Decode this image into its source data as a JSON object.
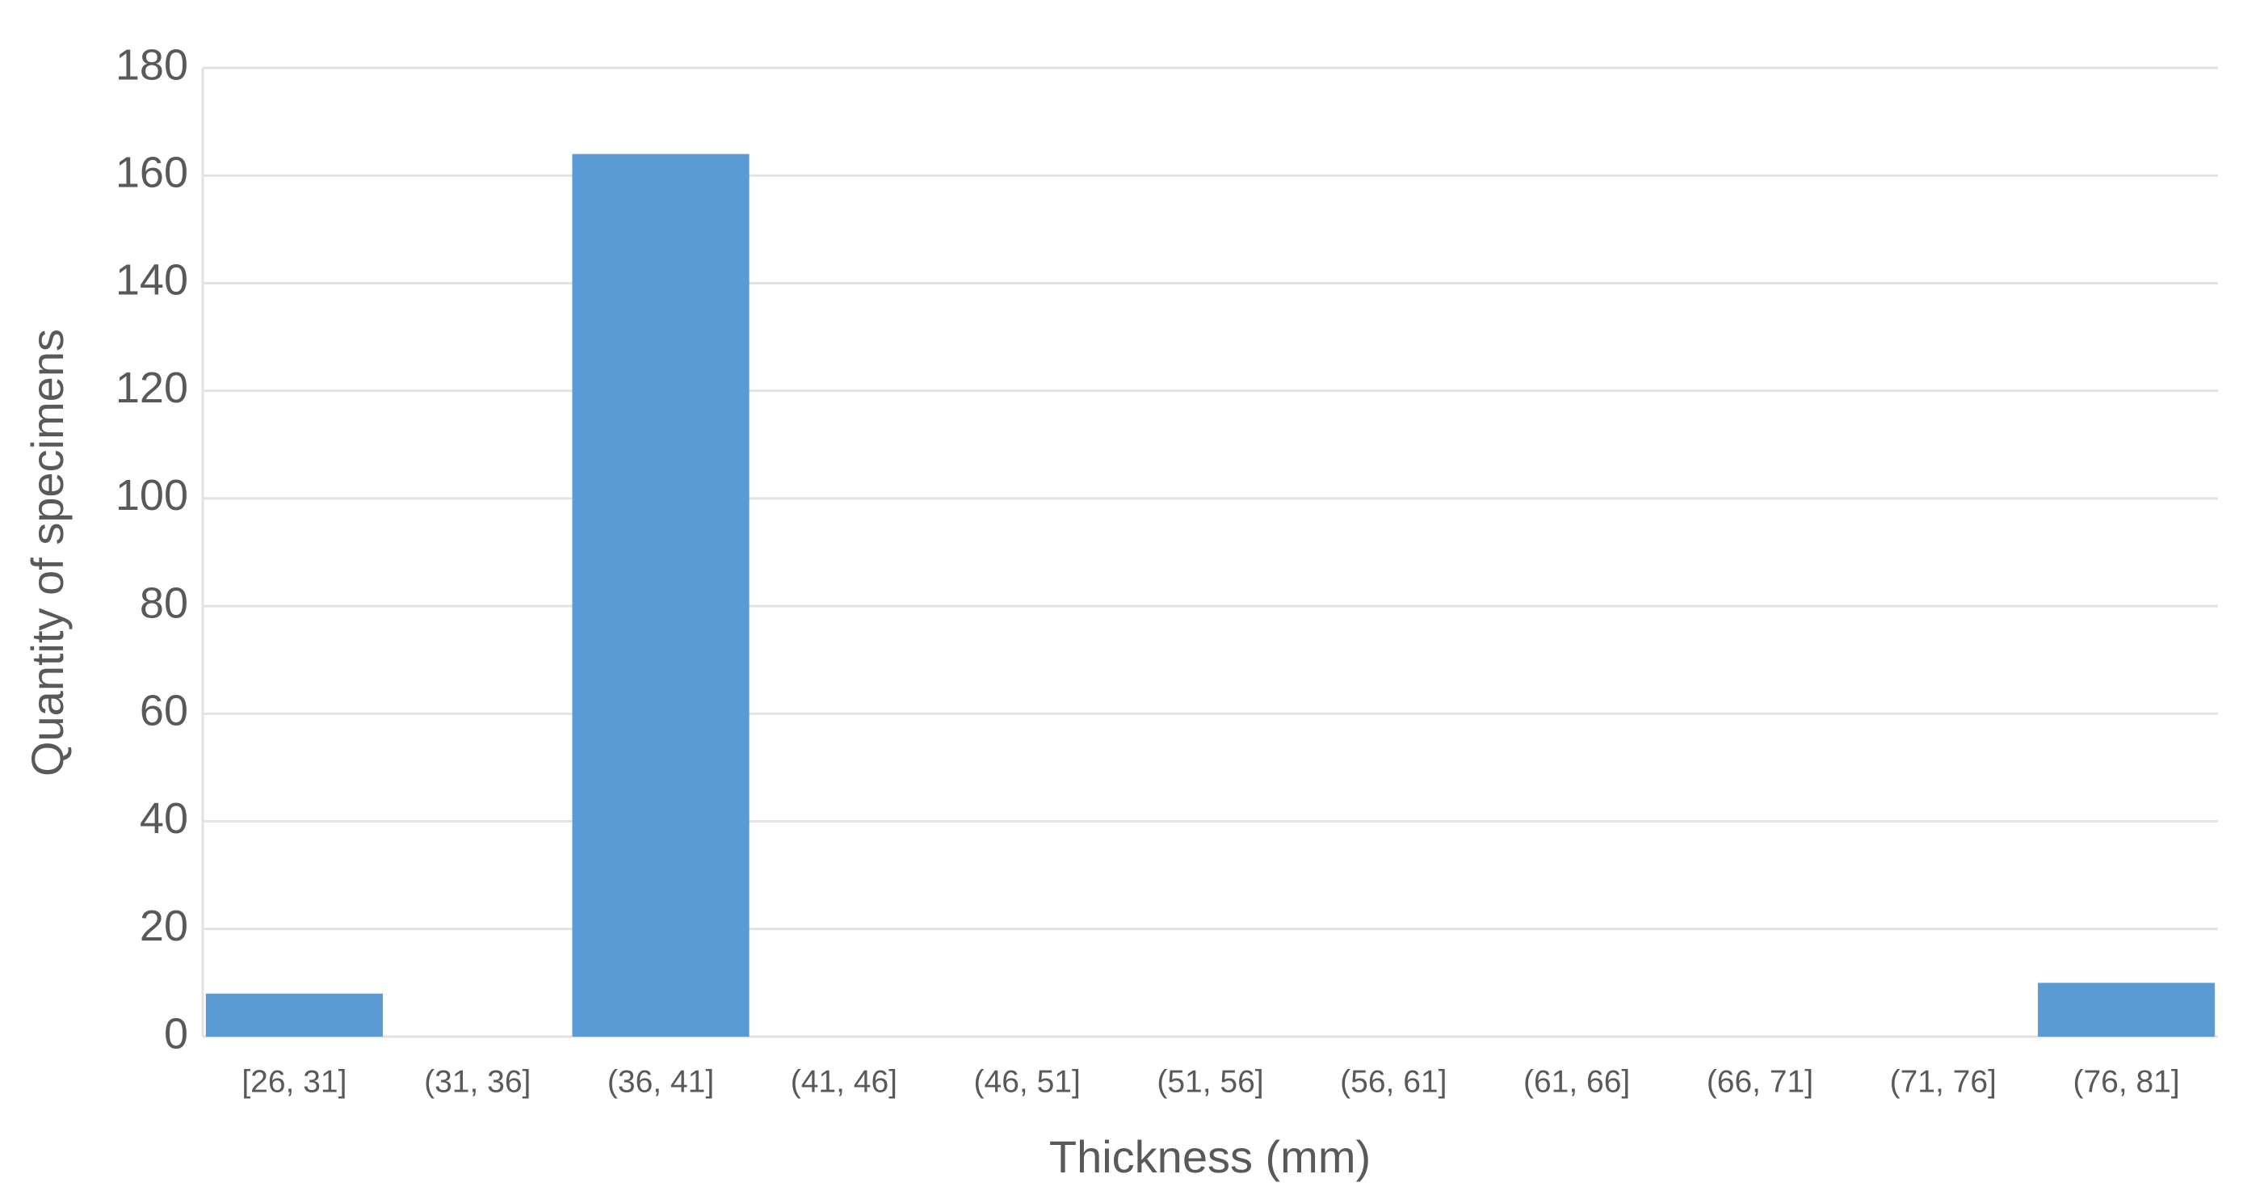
{
  "chart_data": {
    "type": "bar",
    "xlabel": "Thickness (mm)",
    "ylabel": "Quantity of specimens",
    "categories": [
      "[26, 31]",
      "(31, 36]",
      "(36, 41]",
      "(41, 46]",
      "(46, 51]",
      "(51, 56]",
      "(56, 61]",
      "(61, 66]",
      "(66, 71]",
      "(71, 76]",
      "(76, 81]"
    ],
    "values": [
      8,
      0,
      164,
      0,
      0,
      0,
      0,
      0,
      0,
      0,
      10
    ],
    "color": "#5b9bd5",
    "ylim": [
      0,
      180
    ],
    "yticks": [
      0,
      20,
      40,
      60,
      80,
      100,
      120,
      140,
      160,
      180
    ],
    "grid": true
  }
}
